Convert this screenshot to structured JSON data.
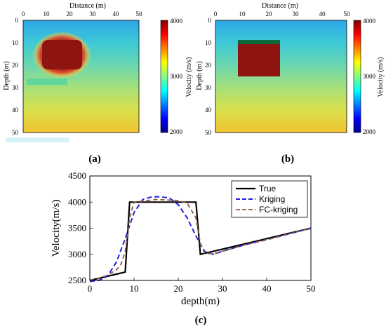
{
  "panels": {
    "a": {
      "caption": "(a)",
      "xlabel": "Distance (m)",
      "ylabel": "Depth (m)",
      "xticks": [
        "0",
        "10",
        "20",
        "30",
        "40",
        "50"
      ],
      "yticks": [
        "0",
        "10",
        "20",
        "30",
        "40",
        "50"
      ],
      "colorbar": {
        "label": "Velocity (m/s)",
        "ticks": [
          "4000",
          "3000",
          "2000"
        ]
      }
    },
    "b": {
      "caption": "(b)",
      "xlabel": "Distance (m)",
      "ylabel": "Depth (m)",
      "xticks": [
        "0",
        "10",
        "20",
        "30",
        "40",
        "50"
      ],
      "yticks": [
        "0",
        "10",
        "20",
        "30",
        "40",
        "50"
      ],
      "colorbar": {
        "label": "Velocity (m/s)",
        "ticks": [
          "4000",
          "3000",
          "2000"
        ]
      }
    },
    "c": {
      "caption": "(c)"
    }
  },
  "colors": {
    "true": "#000000",
    "kriging": "#1f1fdc",
    "fc_kriging": "#8b5a3c"
  },
  "chart_data": [
    {
      "type": "heatmap",
      "panel": "a",
      "xlabel": "Distance (m)",
      "ylabel": "Depth (m)",
      "xlim": [
        0,
        50
      ],
      "ylim": [
        50,
        0
      ],
      "colorbar_label": "Velocity (m/s)",
      "colorbar_range": [
        2000,
        4000
      ],
      "features": [
        {
          "kind": "background",
          "velocity_top": 2500,
          "velocity_bottom": 3500
        },
        {
          "kind": "anomaly",
          "x": [
            8,
            25
          ],
          "depth": [
            8,
            25
          ],
          "velocity": 4000
        },
        {
          "kind": "streak",
          "x": [
            2,
            20
          ],
          "depth": [
            26,
            28
          ],
          "velocity": 2900
        }
      ]
    },
    {
      "type": "heatmap",
      "panel": "b",
      "xlabel": "Distance (m)",
      "ylabel": "Depth (m)",
      "xlim": [
        0,
        50
      ],
      "ylim": [
        50,
        0
      ],
      "colorbar_label": "Velocity (m/s)",
      "colorbar_range": [
        2000,
        4000
      ],
      "features": [
        {
          "kind": "background",
          "velocity_top": 2500,
          "velocity_bottom": 3500
        },
        {
          "kind": "anomaly",
          "x": [
            10,
            25
          ],
          "depth": [
            9,
            25
          ],
          "velocity": 4000
        }
      ]
    },
    {
      "type": "line",
      "panel": "c",
      "xlabel": "depth(m)",
      "ylabel": "Velocity(m/s)",
      "xlim": [
        0,
        50
      ],
      "ylim": [
        2500,
        4500
      ],
      "xticks": [
        0,
        10,
        20,
        30,
        40,
        50
      ],
      "yticks": [
        2500,
        3000,
        3500,
        4000,
        4500
      ],
      "legend_position": "top-right",
      "series": [
        {
          "name": "True",
          "style": "solid",
          "x": [
            0,
            8,
            9,
            24,
            25,
            50
          ],
          "y": [
            2500,
            2660,
            4000,
            4000,
            3000,
            3500
          ]
        },
        {
          "name": "Kriging",
          "style": "dashed",
          "x": [
            0,
            2,
            4,
            6,
            8,
            10,
            12,
            14,
            16,
            18,
            20,
            22,
            24,
            26,
            28,
            30,
            35,
            40,
            45,
            50
          ],
          "y": [
            2480,
            2500,
            2580,
            2850,
            3300,
            3800,
            4050,
            4100,
            4100,
            4080,
            3950,
            3700,
            3350,
            3050,
            3000,
            3060,
            3180,
            3280,
            3390,
            3500
          ]
        },
        {
          "name": "FC-kriging",
          "style": "dashed",
          "x": [
            0,
            2,
            4,
            6,
            7,
            8,
            9,
            10,
            15,
            20,
            22,
            24,
            25,
            26,
            28,
            30,
            35,
            40,
            45,
            50
          ],
          "y": [
            2500,
            2540,
            2600,
            2700,
            2800,
            3050,
            3700,
            4000,
            4050,
            4030,
            3980,
            3700,
            3200,
            3020,
            3010,
            3060,
            3180,
            3280,
            3390,
            3500
          ]
        }
      ]
    }
  ]
}
